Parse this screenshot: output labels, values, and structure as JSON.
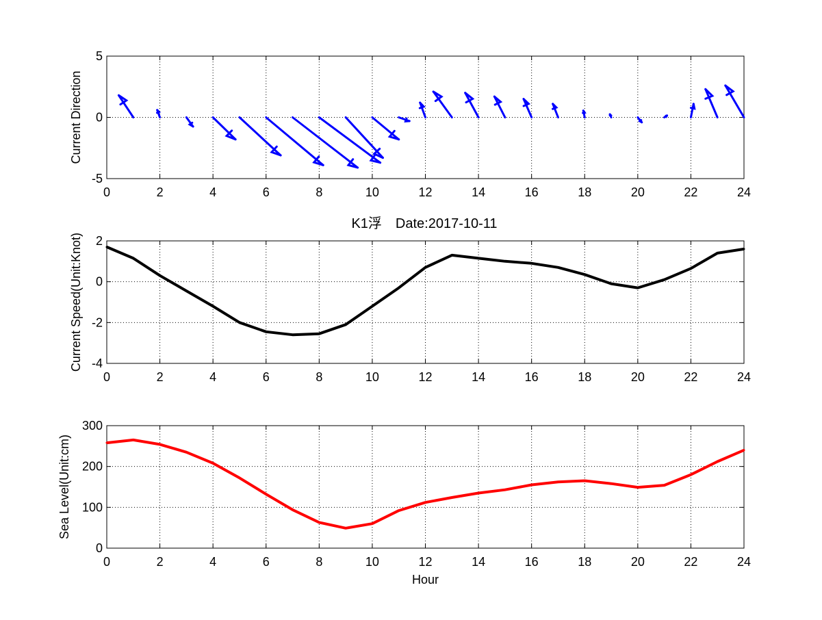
{
  "figure": {
    "title": "K1浮　Date:2017-10-11",
    "title_color": "#ff0000",
    "background": "#ffffff"
  },
  "chart_data": [
    {
      "type": "quiver",
      "ylabel": "Current Direction",
      "xlabel": "",
      "xlim": [
        0,
        24
      ],
      "ylim": [
        -5,
        5
      ],
      "xticks": [
        0,
        2,
        4,
        6,
        8,
        10,
        12,
        14,
        16,
        18,
        20,
        22,
        24
      ],
      "yticks": [
        -5,
        0,
        5
      ],
      "grid": true,
      "color": "#0000ff",
      "x": [
        1,
        2,
        3,
        4,
        5,
        6,
        7,
        8,
        9,
        10,
        11,
        12,
        13,
        14,
        15,
        16,
        17,
        18,
        19,
        20,
        21,
        22,
        23,
        24
      ],
      "u": [
        -0.55,
        -0.1,
        0.25,
        0.85,
        1.55,
        2.15,
        2.45,
        2.3,
        1.4,
        1.0,
        0.4,
        -0.2,
        -0.7,
        -0.5,
        -0.4,
        -0.3,
        -0.2,
        -0.05,
        -0.05,
        0.15,
        0.1,
        0.1,
        -0.45,
        -0.7
      ],
      "v": [
        1.8,
        0.6,
        -0.75,
        -1.8,
        -3.1,
        -3.9,
        -4.1,
        -3.7,
        -3.3,
        -1.8,
        -0.3,
        1.2,
        2.1,
        2.0,
        1.7,
        1.5,
        1.1,
        0.55,
        0.25,
        -0.4,
        0.15,
        1.1,
        2.3,
        2.6
      ]
    },
    {
      "type": "line",
      "ylabel": "Current Speed(Unit:Knot)",
      "xlabel": "",
      "xlim": [
        0,
        24
      ],
      "ylim": [
        -4,
        2
      ],
      "xticks": [
        0,
        2,
        4,
        6,
        8,
        10,
        12,
        14,
        16,
        18,
        20,
        22,
        24
      ],
      "yticks": [
        -4,
        -2,
        0,
        2
      ],
      "grid": true,
      "color": "#000000",
      "x": [
        0,
        1,
        2,
        3,
        4,
        5,
        6,
        7,
        8,
        9,
        10,
        11,
        12,
        13,
        14,
        15,
        16,
        17,
        18,
        19,
        20,
        21,
        22,
        23,
        24
      ],
      "y": [
        1.7,
        1.15,
        0.3,
        -0.45,
        -1.2,
        -2.0,
        -2.45,
        -2.6,
        -2.55,
        -2.1,
        -1.2,
        -0.3,
        0.7,
        1.3,
        1.15,
        1.0,
        0.9,
        0.7,
        0.35,
        -0.1,
        -0.3,
        0.1,
        0.65,
        1.4,
        1.6
      ]
    },
    {
      "type": "line",
      "ylabel": "Sea Level(Unit:cm)",
      "xlabel": "Hour",
      "xlim": [
        0,
        24
      ],
      "ylim": [
        0,
        300
      ],
      "xticks": [
        0,
        2,
        4,
        6,
        8,
        10,
        12,
        14,
        16,
        18,
        20,
        22,
        24
      ],
      "yticks": [
        0,
        100,
        200,
        300
      ],
      "grid": true,
      "color": "#ff0000",
      "x": [
        0,
        1,
        2,
        3,
        4,
        5,
        6,
        7,
        8,
        9,
        10,
        11,
        12,
        13,
        14,
        15,
        16,
        17,
        18,
        19,
        20,
        21,
        22,
        23,
        24
      ],
      "y": [
        258,
        265,
        254,
        235,
        208,
        172,
        132,
        94,
        63,
        49,
        60,
        92,
        112,
        124,
        135,
        143,
        155,
        162,
        165,
        158,
        149,
        154,
        180,
        212,
        240
      ]
    }
  ]
}
